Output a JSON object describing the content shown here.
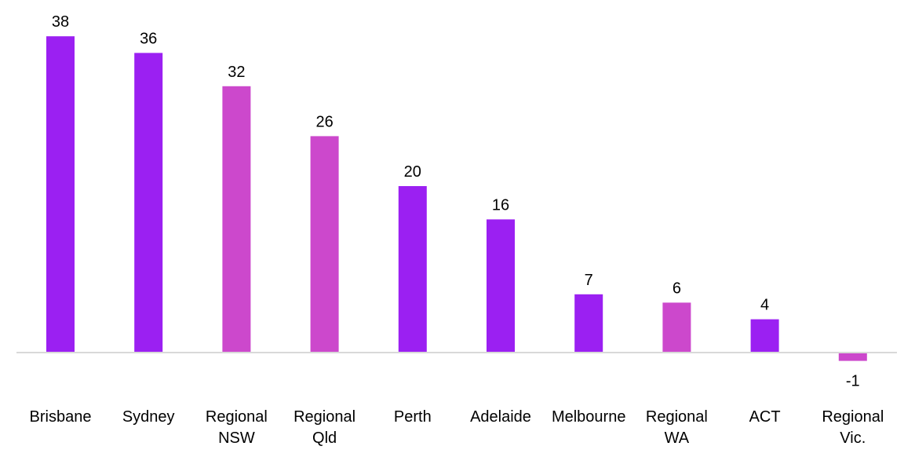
{
  "chart_data": {
    "type": "bar",
    "title": "",
    "xlabel": "",
    "ylabel": "",
    "categories": [
      [
        "Brisbane"
      ],
      [
        "Sydney"
      ],
      [
        "Regional",
        "NSW"
      ],
      [
        "Regional",
        "Qld"
      ],
      [
        "Perth"
      ],
      [
        "Adelaide"
      ],
      [
        "Melbourne"
      ],
      [
        "Regional",
        "WA"
      ],
      [
        "ACT"
      ],
      [
        "Regional",
        "Vic."
      ]
    ],
    "values": [
      38,
      36,
      32,
      26,
      20,
      16,
      7,
      6,
      4,
      -1
    ],
    "bar_colors": [
      "#9b20f2",
      "#9b20f2",
      "#cc48cc",
      "#cc48cc",
      "#9b20f2",
      "#9b20f2",
      "#9b20f2",
      "#cc48cc",
      "#9b20f2",
      "#cc48cc"
    ],
    "axis_color": "#d9d9d9",
    "ylim": [
      -1,
      38
    ],
    "grid": false,
    "data_labels": true
  }
}
